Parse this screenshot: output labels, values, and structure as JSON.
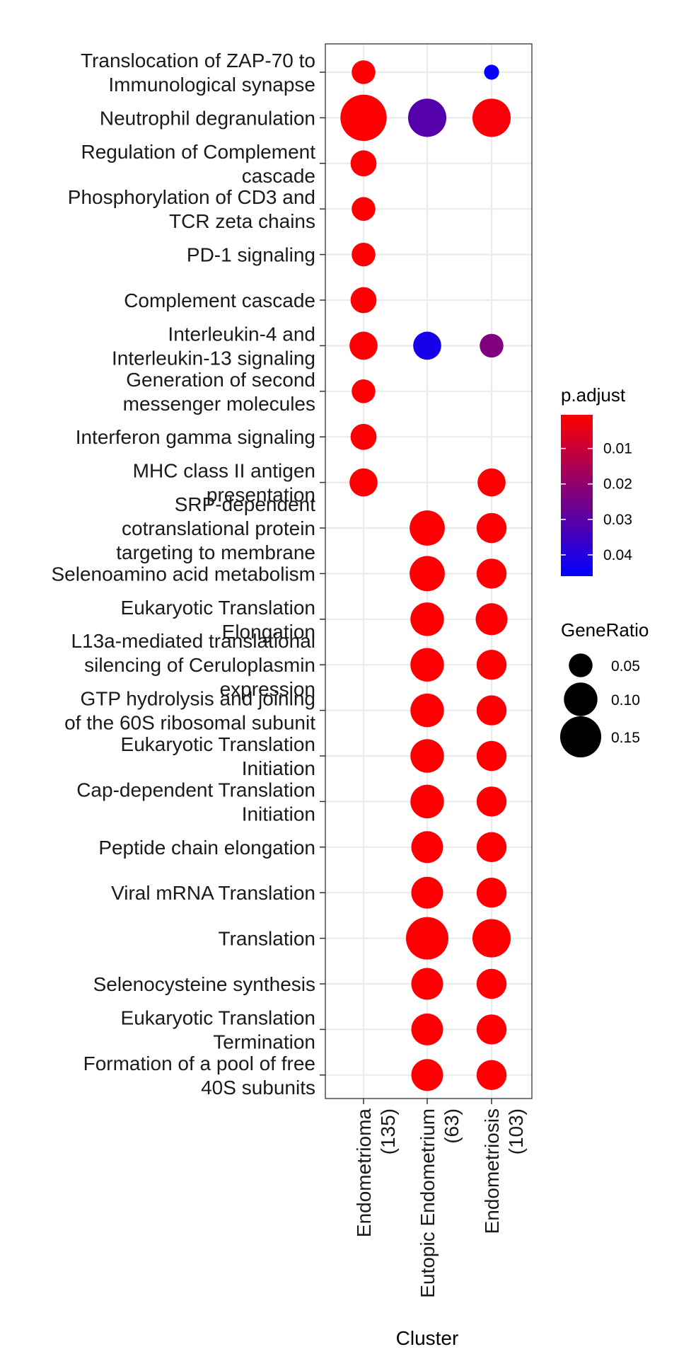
{
  "chart_data": {
    "type": "scatter",
    "subtype": "dot-plot",
    "xlabel": "Cluster",
    "clusters": [
      {
        "name": "Endometrioma",
        "count": "(135)"
      },
      {
        "name": "Eutopic Endometrium",
        "count": "(63)"
      },
      {
        "name": "Endometriosis",
        "count": "(103)"
      }
    ],
    "terms": [
      [
        "Translocation of ZAP-70 to",
        "Immunological synapse"
      ],
      [
        "Neutrophil degranulation"
      ],
      [
        "Regulation of Complement",
        "cascade"
      ],
      [
        "Phosphorylation of CD3 and",
        "TCR zeta chains"
      ],
      [
        "PD-1 signaling"
      ],
      [
        "Complement cascade"
      ],
      [
        "Interleukin-4 and",
        "Interleukin-13 signaling"
      ],
      [
        "Generation of second",
        "messenger molecules"
      ],
      [
        "Interferon gamma signaling"
      ],
      [
        "MHC class II antigen",
        "presentation"
      ],
      [
        "SRP-dependent",
        "cotranslational protein",
        "targeting to membrane"
      ],
      [
        "Selenoamino acid metabolism"
      ],
      [
        "Eukaryotic Translation",
        "Elongation"
      ],
      [
        "L13a-mediated translational",
        "silencing of Ceruloplasmin",
        "expression"
      ],
      [
        "GTP hydrolysis and joining",
        "of the 60S ribosomal subunit"
      ],
      [
        "Eukaryotic Translation",
        "Initiation"
      ],
      [
        "Cap-dependent Translation",
        "Initiation"
      ],
      [
        "Peptide chain elongation"
      ],
      [
        "Viral mRNA Translation"
      ],
      [
        "Translation"
      ],
      [
        "Selenocysteine synthesis"
      ],
      [
        "Eukaryotic Translation",
        "Termination"
      ],
      [
        "Formation of a pool of free",
        "40S subunits"
      ]
    ],
    "points": [
      {
        "term": 0,
        "cluster": 0,
        "gene_ratio": 0.05,
        "p_adjust": 0.001
      },
      {
        "term": 0,
        "cluster": 2,
        "gene_ratio": 0.02,
        "p_adjust": 0.045
      },
      {
        "term": 1,
        "cluster": 0,
        "gene_ratio": 0.19,
        "p_adjust": 0.001
      },
      {
        "term": 1,
        "cluster": 1,
        "gene_ratio": 0.13,
        "p_adjust": 0.031
      },
      {
        "term": 1,
        "cluster": 2,
        "gene_ratio": 0.13,
        "p_adjust": 0.002
      },
      {
        "term": 2,
        "cluster": 0,
        "gene_ratio": 0.06,
        "p_adjust": 0.001
      },
      {
        "term": 3,
        "cluster": 0,
        "gene_ratio": 0.05,
        "p_adjust": 0.001
      },
      {
        "term": 4,
        "cluster": 0,
        "gene_ratio": 0.05,
        "p_adjust": 0.001
      },
      {
        "term": 5,
        "cluster": 0,
        "gene_ratio": 0.06,
        "p_adjust": 0.001
      },
      {
        "term": 6,
        "cluster": 0,
        "gene_ratio": 0.07,
        "p_adjust": 0.001
      },
      {
        "term": 6,
        "cluster": 1,
        "gene_ratio": 0.07,
        "p_adjust": 0.042
      },
      {
        "term": 6,
        "cluster": 2,
        "gene_ratio": 0.05,
        "p_adjust": 0.023
      },
      {
        "term": 7,
        "cluster": 0,
        "gene_ratio": 0.05,
        "p_adjust": 0.001
      },
      {
        "term": 8,
        "cluster": 0,
        "gene_ratio": 0.06,
        "p_adjust": 0.001
      },
      {
        "term": 9,
        "cluster": 0,
        "gene_ratio": 0.07,
        "p_adjust": 0.001
      },
      {
        "term": 9,
        "cluster": 2,
        "gene_ratio": 0.07,
        "p_adjust": 0.001
      },
      {
        "term": 10,
        "cluster": 1,
        "gene_ratio": 0.11,
        "p_adjust": 0.001
      },
      {
        "term": 10,
        "cluster": 2,
        "gene_ratio": 0.08,
        "p_adjust": 0.001
      },
      {
        "term": 11,
        "cluster": 1,
        "gene_ratio": 0.11,
        "p_adjust": 0.001
      },
      {
        "term": 11,
        "cluster": 2,
        "gene_ratio": 0.08,
        "p_adjust": 0.001
      },
      {
        "term": 12,
        "cluster": 1,
        "gene_ratio": 0.1,
        "p_adjust": 0.001
      },
      {
        "term": 12,
        "cluster": 2,
        "gene_ratio": 0.09,
        "p_adjust": 0.001
      },
      {
        "term": 13,
        "cluster": 1,
        "gene_ratio": 0.1,
        "p_adjust": 0.001
      },
      {
        "term": 13,
        "cluster": 2,
        "gene_ratio": 0.08,
        "p_adjust": 0.001
      },
      {
        "term": 14,
        "cluster": 1,
        "gene_ratio": 0.1,
        "p_adjust": 0.001
      },
      {
        "term": 14,
        "cluster": 2,
        "gene_ratio": 0.08,
        "p_adjust": 0.001
      },
      {
        "term": 15,
        "cluster": 1,
        "gene_ratio": 0.1,
        "p_adjust": 0.001
      },
      {
        "term": 15,
        "cluster": 2,
        "gene_ratio": 0.08,
        "p_adjust": 0.001
      },
      {
        "term": 16,
        "cluster": 1,
        "gene_ratio": 0.1,
        "p_adjust": 0.001
      },
      {
        "term": 16,
        "cluster": 2,
        "gene_ratio": 0.08,
        "p_adjust": 0.001
      },
      {
        "term": 17,
        "cluster": 1,
        "gene_ratio": 0.09,
        "p_adjust": 0.001
      },
      {
        "term": 17,
        "cluster": 2,
        "gene_ratio": 0.08,
        "p_adjust": 0.001
      },
      {
        "term": 18,
        "cluster": 1,
        "gene_ratio": 0.09,
        "p_adjust": 0.001
      },
      {
        "term": 18,
        "cluster": 2,
        "gene_ratio": 0.08,
        "p_adjust": 0.001
      },
      {
        "term": 19,
        "cluster": 1,
        "gene_ratio": 0.16,
        "p_adjust": 0.001
      },
      {
        "term": 19,
        "cluster": 2,
        "gene_ratio": 0.13,
        "p_adjust": 0.001
      },
      {
        "term": 20,
        "cluster": 1,
        "gene_ratio": 0.09,
        "p_adjust": 0.001
      },
      {
        "term": 20,
        "cluster": 2,
        "gene_ratio": 0.08,
        "p_adjust": 0.001
      },
      {
        "term": 21,
        "cluster": 1,
        "gene_ratio": 0.09,
        "p_adjust": 0.001
      },
      {
        "term": 21,
        "cluster": 2,
        "gene_ratio": 0.08,
        "p_adjust": 0.001
      },
      {
        "term": 22,
        "cluster": 1,
        "gene_ratio": 0.09,
        "p_adjust": 0.001
      },
      {
        "term": 22,
        "cluster": 2,
        "gene_ratio": 0.08,
        "p_adjust": 0.001
      }
    ],
    "grid": true,
    "legend_placement": "right",
    "color_legend": {
      "title": "p.adjust",
      "low_color": "#ff0000",
      "high_color": "#0000ff",
      "range": [
        0.0005,
        0.046
      ],
      "ticks": [
        {
          "value": 0.01,
          "label": "0.01"
        },
        {
          "value": 0.02,
          "label": "0.02"
        },
        {
          "value": 0.03,
          "label": "0.03"
        },
        {
          "value": 0.04,
          "label": "0.04"
        }
      ]
    },
    "size_legend": {
      "title": "GeneRatio",
      "entries": [
        {
          "value": 0.05,
          "label": "0.05"
        },
        {
          "value": 0.1,
          "label": "0.10"
        },
        {
          "value": 0.15,
          "label": "0.15"
        }
      ]
    }
  }
}
